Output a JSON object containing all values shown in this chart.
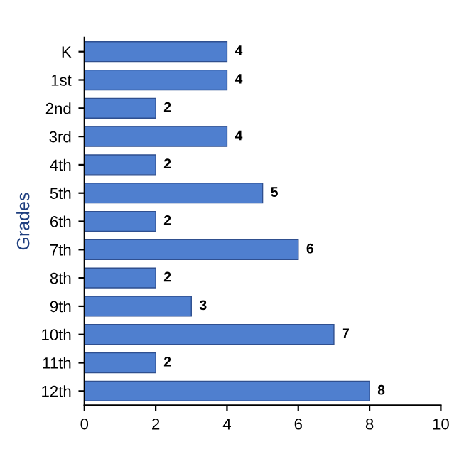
{
  "chart_data": {
    "type": "bar",
    "orientation": "horizontal",
    "ylabel": "Grades",
    "categories": [
      "K",
      "1st",
      "2nd",
      "3rd",
      "4th",
      "5th",
      "6th",
      "7th",
      "8th",
      "9th",
      "10th",
      "11th",
      "12th"
    ],
    "values": [
      4,
      4,
      2,
      4,
      2,
      5,
      2,
      6,
      2,
      3,
      7,
      2,
      8
    ],
    "color": "#4f7fcf",
    "xlim": [
      0,
      10
    ],
    "xticks": [
      0,
      2,
      4,
      6,
      8,
      10
    ],
    "data_labels": true,
    "grid": false,
    "legend": false
  }
}
